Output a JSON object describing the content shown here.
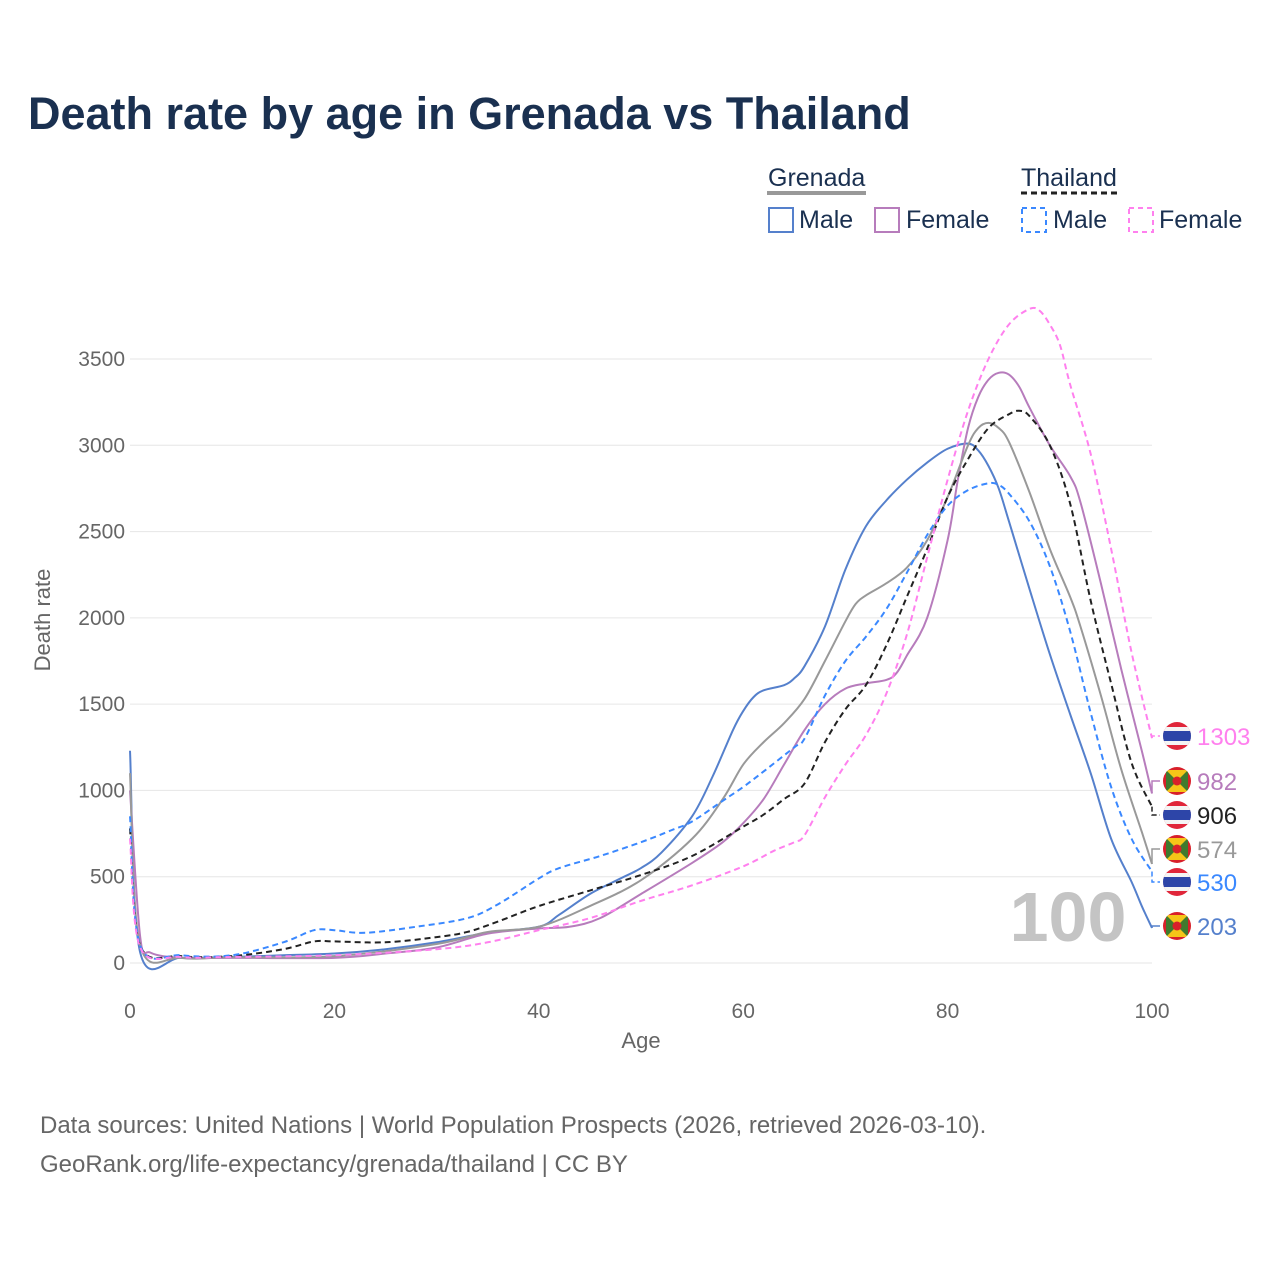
{
  "title": "Death rate by age in Grenada vs Thailand",
  "watermark": "100",
  "footer": {
    "line1": "Data sources: United Nations | World Population Prospects (2026, retrieved 2026-03-10).",
    "line2": "GeoRank.org/life-expectancy/grenada/thailand | CC BY"
  },
  "legend": {
    "group1": "Grenada",
    "group2": "Thailand",
    "male": "Male",
    "female": "Female"
  },
  "chart_data": {
    "type": "line",
    "title": "Death rate by age in Grenada vs Thailand",
    "xlabel": "Age",
    "ylabel": "Death rate",
    "xlim": [
      0,
      100
    ],
    "ylim": [
      0,
      3800
    ],
    "xticks": [
      0,
      20,
      40,
      60,
      80,
      100
    ],
    "yticks": [
      0,
      500,
      1000,
      1500,
      2000,
      2500,
      3000,
      3500
    ],
    "grid": true,
    "legend_position": "top-right",
    "series": [
      {
        "name": "Grenada Male",
        "country": "grenada",
        "color": "#5580cc",
        "dash": false,
        "end_label": "203",
        "points": [
          [
            0,
            1230
          ],
          [
            1,
            60
          ],
          [
            5,
            30
          ],
          [
            10,
            35
          ],
          [
            15,
            45
          ],
          [
            20,
            55
          ],
          [
            25,
            80
          ],
          [
            30,
            120
          ],
          [
            35,
            175
          ],
          [
            40,
            210
          ],
          [
            42,
            280
          ],
          [
            45,
            400
          ],
          [
            48,
            490
          ],
          [
            50,
            550
          ],
          [
            52,
            640
          ],
          [
            55,
            850
          ],
          [
            57,
            1080
          ],
          [
            59,
            1350
          ],
          [
            60,
            1460
          ],
          [
            61,
            1540
          ],
          [
            62,
            1580
          ],
          [
            64,
            1610
          ],
          [
            65,
            1650
          ],
          [
            66,
            1720
          ],
          [
            68,
            1950
          ],
          [
            70,
            2280
          ],
          [
            72,
            2530
          ],
          [
            74,
            2680
          ],
          [
            76,
            2800
          ],
          [
            78,
            2900
          ],
          [
            80,
            2980
          ],
          [
            82,
            3010
          ],
          [
            83,
            2970
          ],
          [
            84,
            2880
          ],
          [
            85,
            2750
          ],
          [
            86,
            2560
          ],
          [
            88,
            2170
          ],
          [
            90,
            1790
          ],
          [
            92,
            1440
          ],
          [
            94,
            1100
          ],
          [
            96,
            720
          ],
          [
            98,
            470
          ],
          [
            99,
            330
          ],
          [
            100,
            203
          ]
        ]
      },
      {
        "name": "Grenada Female",
        "country": "grenada",
        "color": "#b77cbc",
        "dash": false,
        "end_label": "982",
        "points": [
          [
            0,
            1000
          ],
          [
            1,
            150
          ],
          [
            2,
            60
          ],
          [
            5,
            30
          ],
          [
            10,
            30
          ],
          [
            20,
            30
          ],
          [
            25,
            55
          ],
          [
            30,
            90
          ],
          [
            35,
            170
          ],
          [
            40,
            200
          ],
          [
            43,
            210
          ],
          [
            46,
            260
          ],
          [
            50,
            400
          ],
          [
            55,
            580
          ],
          [
            58,
            700
          ],
          [
            60,
            810
          ],
          [
            62,
            950
          ],
          [
            64,
            1150
          ],
          [
            66,
            1350
          ],
          [
            68,
            1500
          ],
          [
            70,
            1590
          ],
          [
            72,
            1620
          ],
          [
            74,
            1640
          ],
          [
            75,
            1680
          ],
          [
            76,
            1780
          ],
          [
            78,
            2000
          ],
          [
            80,
            2450
          ],
          [
            81,
            2800
          ],
          [
            82,
            3100
          ],
          [
            83,
            3280
          ],
          [
            84,
            3380
          ],
          [
            85,
            3420
          ],
          [
            86,
            3410
          ],
          [
            87,
            3340
          ],
          [
            88,
            3220
          ],
          [
            90,
            3000
          ],
          [
            92,
            2820
          ],
          [
            93,
            2670
          ],
          [
            95,
            2200
          ],
          [
            97,
            1700
          ],
          [
            99,
            1230
          ],
          [
            100,
            982
          ]
        ]
      },
      {
        "name": "Grenada Total",
        "country": "grenada",
        "color": "#999999",
        "dash": false,
        "end_label": "574",
        "points": [
          [
            0,
            1100
          ],
          [
            1,
            100
          ],
          [
            5,
            30
          ],
          [
            10,
            33
          ],
          [
            20,
            40
          ],
          [
            30,
            110
          ],
          [
            35,
            180
          ],
          [
            40,
            210
          ],
          [
            45,
            330
          ],
          [
            50,
            480
          ],
          [
            55,
            720
          ],
          [
            58,
            950
          ],
          [
            60,
            1150
          ],
          [
            62,
            1280
          ],
          [
            64,
            1390
          ],
          [
            66,
            1530
          ],
          [
            68,
            1750
          ],
          [
            70,
            1980
          ],
          [
            71,
            2080
          ],
          [
            72,
            2130
          ],
          [
            74,
            2200
          ],
          [
            76,
            2290
          ],
          [
            78,
            2450
          ],
          [
            80,
            2700
          ],
          [
            82,
            3000
          ],
          [
            83,
            3100
          ],
          [
            84,
            3130
          ],
          [
            85,
            3100
          ],
          [
            86,
            3020
          ],
          [
            88,
            2730
          ],
          [
            90,
            2400
          ],
          [
            92,
            2120
          ],
          [
            93,
            1950
          ],
          [
            95,
            1550
          ],
          [
            97,
            1120
          ],
          [
            99,
            760
          ],
          [
            100,
            574
          ]
        ]
      },
      {
        "name": "Thailand Total",
        "country": "thailand",
        "color": "#222222",
        "dash": true,
        "end_label": "906",
        "points": [
          [
            0,
            780
          ],
          [
            1,
            100
          ],
          [
            5,
            40
          ],
          [
            10,
            40
          ],
          [
            15,
            80
          ],
          [
            18,
            125
          ],
          [
            20,
            125
          ],
          [
            25,
            120
          ],
          [
            30,
            150
          ],
          [
            33,
            180
          ],
          [
            36,
            240
          ],
          [
            40,
            330
          ],
          [
            45,
            420
          ],
          [
            50,
            510
          ],
          [
            55,
            620
          ],
          [
            60,
            790
          ],
          [
            62,
            860
          ],
          [
            64,
            950
          ],
          [
            66,
            1040
          ],
          [
            68,
            1280
          ],
          [
            70,
            1470
          ],
          [
            72,
            1610
          ],
          [
            74,
            1840
          ],
          [
            76,
            2120
          ],
          [
            78,
            2400
          ],
          [
            80,
            2700
          ],
          [
            82,
            2920
          ],
          [
            84,
            3100
          ],
          [
            86,
            3180
          ],
          [
            87,
            3200
          ],
          [
            88,
            3170
          ],
          [
            90,
            3000
          ],
          [
            92,
            2660
          ],
          [
            94,
            2100
          ],
          [
            96,
            1620
          ],
          [
            98,
            1160
          ],
          [
            100,
            906
          ]
        ]
      },
      {
        "name": "Thailand Male",
        "country": "thailand",
        "color": "#3a88ff",
        "dash": true,
        "end_label": "530",
        "points": [
          [
            0,
            850
          ],
          [
            1,
            100
          ],
          [
            5,
            45
          ],
          [
            10,
            45
          ],
          [
            15,
            120
          ],
          [
            18,
            190
          ],
          [
            20,
            190
          ],
          [
            23,
            175
          ],
          [
            28,
            210
          ],
          [
            33,
            260
          ],
          [
            36,
            340
          ],
          [
            40,
            490
          ],
          [
            42,
            550
          ],
          [
            46,
            620
          ],
          [
            50,
            700
          ],
          [
            53,
            770
          ],
          [
            55,
            820
          ],
          [
            58,
            940
          ],
          [
            60,
            1020
          ],
          [
            62,
            1110
          ],
          [
            65,
            1250
          ],
          [
            66,
            1300
          ],
          [
            68,
            1550
          ],
          [
            70,
            1750
          ],
          [
            72,
            1890
          ],
          [
            74,
            2050
          ],
          [
            76,
            2260
          ],
          [
            78,
            2480
          ],
          [
            80,
            2650
          ],
          [
            82,
            2740
          ],
          [
            84,
            2780
          ],
          [
            85,
            2770
          ],
          [
            86,
            2720
          ],
          [
            88,
            2560
          ],
          [
            90,
            2300
          ],
          [
            92,
            1920
          ],
          [
            94,
            1450
          ],
          [
            96,
            1020
          ],
          [
            98,
            720
          ],
          [
            100,
            530
          ]
        ]
      },
      {
        "name": "Thailand Female",
        "country": "thailand",
        "color": "#ff80ee",
        "dash": true,
        "end_label": "1303",
        "points": [
          [
            0,
            720
          ],
          [
            1,
            90
          ],
          [
            5,
            35
          ],
          [
            10,
            35
          ],
          [
            20,
            45
          ],
          [
            30,
            80
          ],
          [
            35,
            120
          ],
          [
            40,
            190
          ],
          [
            45,
            260
          ],
          [
            50,
            360
          ],
          [
            55,
            450
          ],
          [
            60,
            560
          ],
          [
            63,
            650
          ],
          [
            65,
            700
          ],
          [
            66,
            740
          ],
          [
            68,
            960
          ],
          [
            70,
            1150
          ],
          [
            72,
            1320
          ],
          [
            74,
            1560
          ],
          [
            76,
            1900
          ],
          [
            78,
            2350
          ],
          [
            80,
            2800
          ],
          [
            82,
            3200
          ],
          [
            84,
            3500
          ],
          [
            86,
            3700
          ],
          [
            88,
            3790
          ],
          [
            89,
            3780
          ],
          [
            90,
            3700
          ],
          [
            91,
            3580
          ],
          [
            92,
            3350
          ],
          [
            94,
            2950
          ],
          [
            96,
            2400
          ],
          [
            98,
            1800
          ],
          [
            100,
            1303
          ]
        ]
      }
    ]
  }
}
